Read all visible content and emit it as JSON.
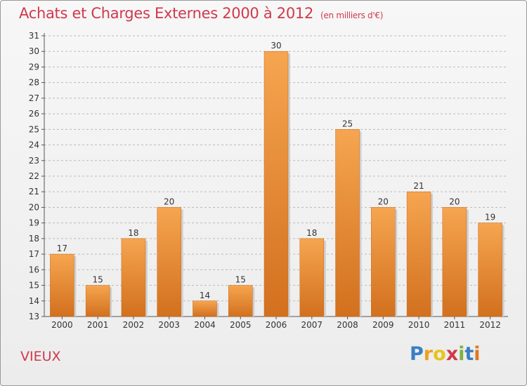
{
  "header": {
    "title": "Achats et Charges Externes 2000 à 2012",
    "subtitle": "(en milliers d'€)"
  },
  "footer": {
    "commune": "VIEUX",
    "logo_letters": [
      "P",
      "r",
      "o",
      "x",
      "i",
      "t",
      "i"
    ],
    "logo_colors": [
      "#3a7fc4",
      "#f0a020",
      "#e8c41a",
      "#d0394b",
      "#7cb342",
      "#3a7fc4",
      "#e07820"
    ]
  },
  "colors": {
    "bar_top": "#f6a550",
    "bar_bottom": "#d2701e",
    "title": "#d0394b",
    "grid": "#bbbbbb"
  },
  "chart_data": {
    "type": "bar",
    "title": "Achats et Charges Externes 2000 à 2012",
    "subtitle": "(en milliers d'€)",
    "categories": [
      "2000",
      "2001",
      "2002",
      "2003",
      "2004",
      "2005",
      "2006",
      "2007",
      "2008",
      "2009",
      "2010",
      "2011",
      "2012"
    ],
    "values": [
      17,
      15,
      18,
      20,
      14,
      15,
      30,
      18,
      25,
      20,
      21,
      20,
      19
    ],
    "ylim": [
      13,
      31
    ],
    "yticks": [
      13,
      14,
      15,
      16,
      17,
      18,
      19,
      20,
      21,
      22,
      23,
      24,
      25,
      26,
      27,
      28,
      29,
      30,
      31
    ],
    "grid": "horizontal dashed",
    "data_labels": true
  }
}
